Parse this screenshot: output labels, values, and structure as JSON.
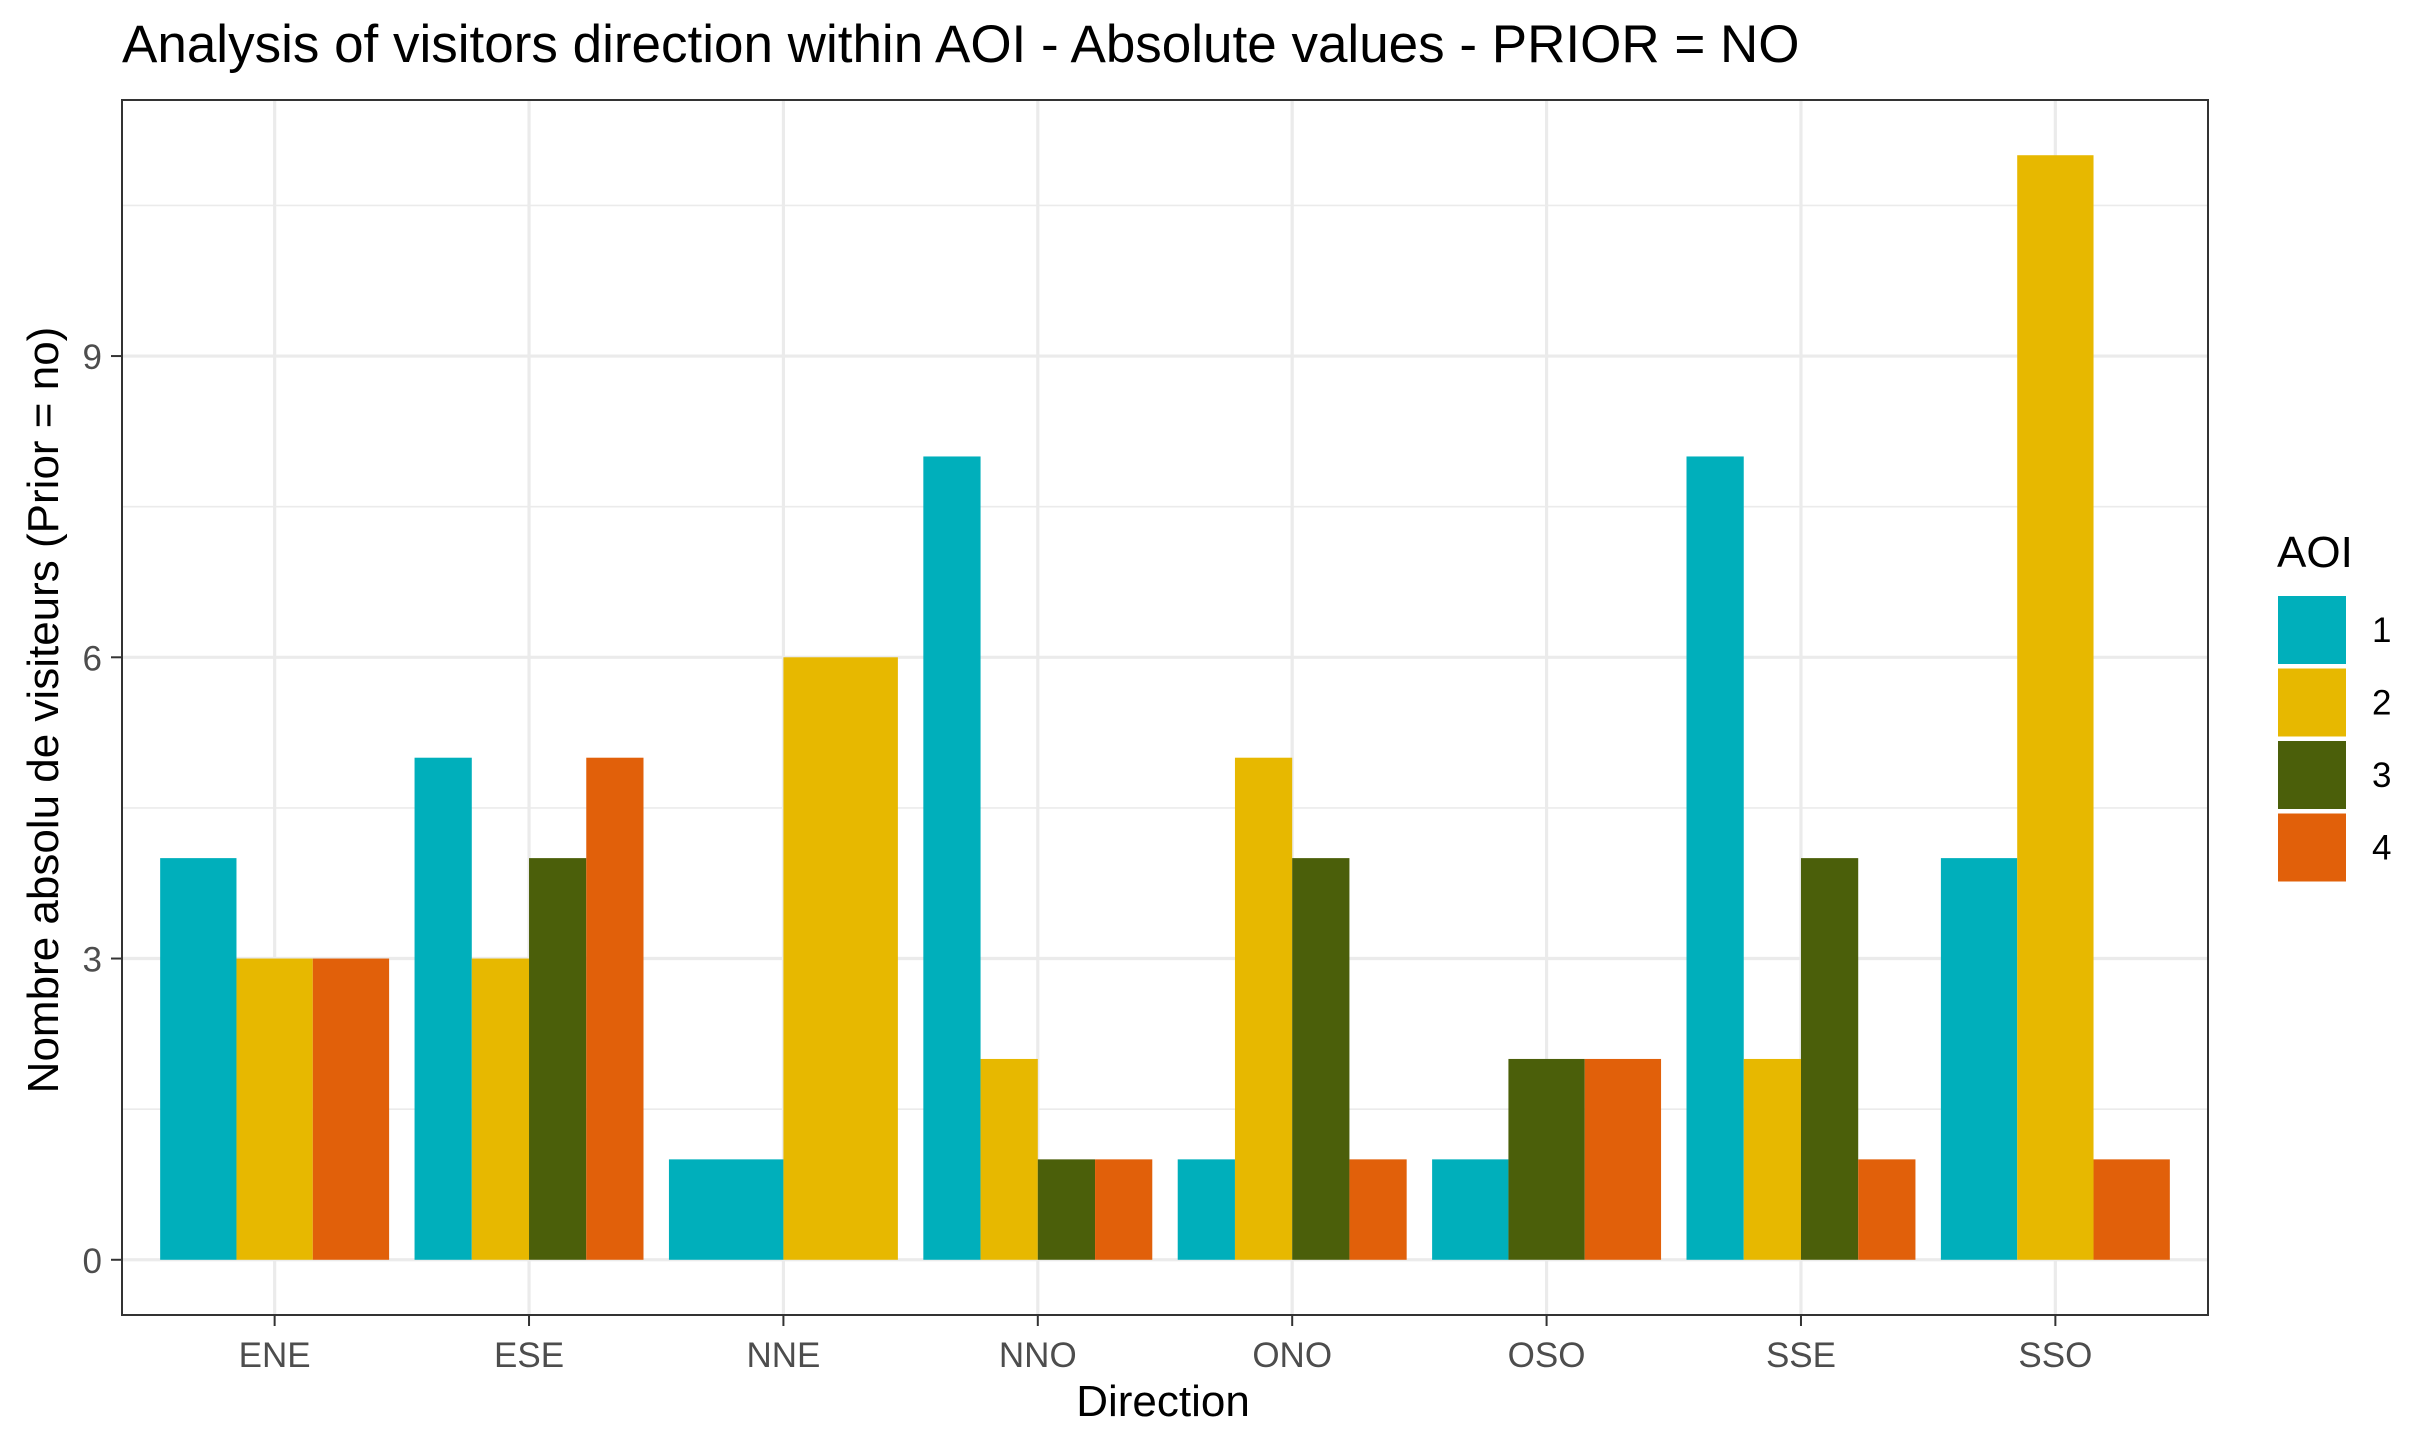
{
  "chart_data": {
    "type": "bar",
    "title": "Analysis of visitors direction within AOI - Absolute values - PRIOR = NO",
    "xlabel": "Direction",
    "ylabel": "Nombre absolu de visiteurs (Prior = no)",
    "categories": [
      "ENE",
      "ESE",
      "NNE",
      "NNO",
      "ONO",
      "OSO",
      "SSE",
      "SSO"
    ],
    "ylim": [
      -0.55,
      11.55
    ],
    "yticks": [
      0,
      3,
      6,
      9
    ],
    "grid": true,
    "legend_title": "AOI",
    "legend_position": "right",
    "series": [
      {
        "name": "1",
        "color": "#00AFBB",
        "values": [
          4,
          5,
          1,
          8,
          1,
          1,
          8,
          4
        ]
      },
      {
        "name": "2",
        "color": "#E7B800",
        "values": [
          3,
          3,
          6,
          2,
          5,
          0,
          2,
          11
        ]
      },
      {
        "name": "3",
        "color": "#4B5F0A",
        "values": [
          0,
          4,
          0,
          1,
          4,
          2,
          4,
          0
        ]
      },
      {
        "name": "4",
        "color": "#E1600A",
        "values": [
          3,
          5,
          0,
          1,
          1,
          2,
          1,
          1
        ]
      }
    ]
  }
}
